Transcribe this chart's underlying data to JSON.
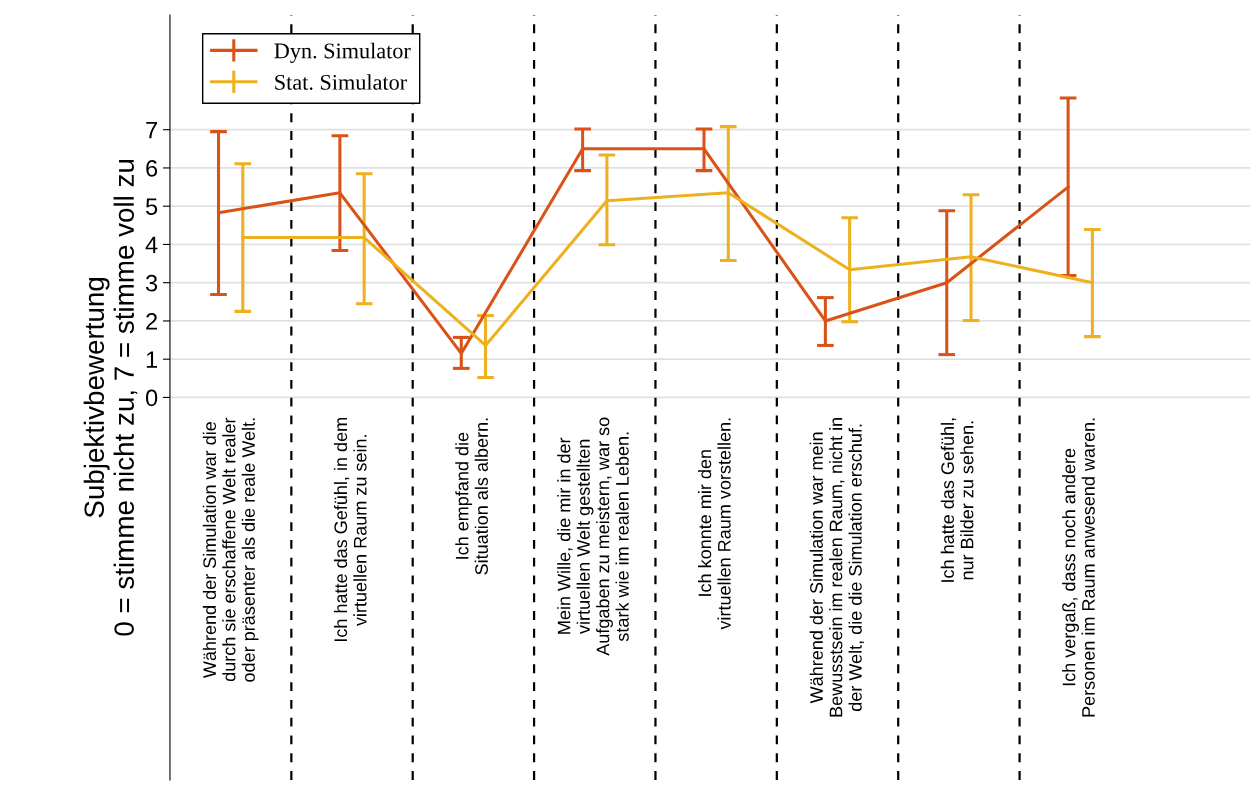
{
  "chart_data": {
    "type": "line",
    "ylabel": "Subjektivbewertung\n0 = stimme nicht zu, 7 = stimme voll zu",
    "ylim": [
      -10,
      10
    ],
    "yticks": [
      0,
      1,
      2,
      3,
      4,
      5,
      6,
      7
    ],
    "categories": [
      "Während der Simulation war die\ndurch sie erschaffene Welt realer\noder präsenter als die reale Welt.",
      "Ich hatte das Gefühl, in dem\nvirtuellen Raum zu sein.",
      "Ich empfand die\nSituation als albern.",
      "Mein Wille, die mir in der\nvirtuellen Welt gestellten\nAufgaben zu meistern, war so\nstark wie im realen Leben.",
      "Ich konnte mir den\nvirtuellen Raum vorstellen.",
      "Während der Simulation war mein\nBewusstsein im realen Raum, nicht in\nder Welt, die die Simulation erschuf.",
      "Ich hatte das Gefühl,\nnur Bilder zu sehen.",
      "Ich vergaß, dass noch andere\nPersonen im Raum anwesend waren."
    ],
    "series": [
      {
        "name": "Dyn. Simulator",
        "color": "#d95319",
        "values": [
          4.83,
          5.35,
          1.15,
          6.5,
          6.5,
          2.0,
          3.0,
          5.5
        ],
        "errors": [
          [
            2.69,
            6.95
          ],
          [
            3.84,
            6.84
          ],
          [
            0.76,
            1.57
          ],
          [
            5.93,
            7.02
          ],
          [
            5.93,
            7.02
          ],
          [
            1.36,
            2.61
          ],
          [
            1.12,
            4.88
          ],
          [
            3.19,
            7.83
          ]
        ]
      },
      {
        "name": "Stat. Simulator",
        "color": "#edb120",
        "values": [
          4.18,
          4.18,
          1.36,
          5.14,
          5.35,
          3.34,
          3.68,
          3.0
        ],
        "errors": [
          [
            2.25,
            6.11
          ],
          [
            2.45,
            5.85
          ],
          [
            0.52,
            2.14
          ],
          [
            3.99,
            6.34
          ],
          [
            3.58,
            7.08
          ],
          [
            1.98,
            4.7
          ],
          [
            2.01,
            5.3
          ],
          [
            1.59,
            4.39
          ]
        ]
      }
    ],
    "grid": true,
    "legend": "top left",
    "line_style": "solid"
  }
}
